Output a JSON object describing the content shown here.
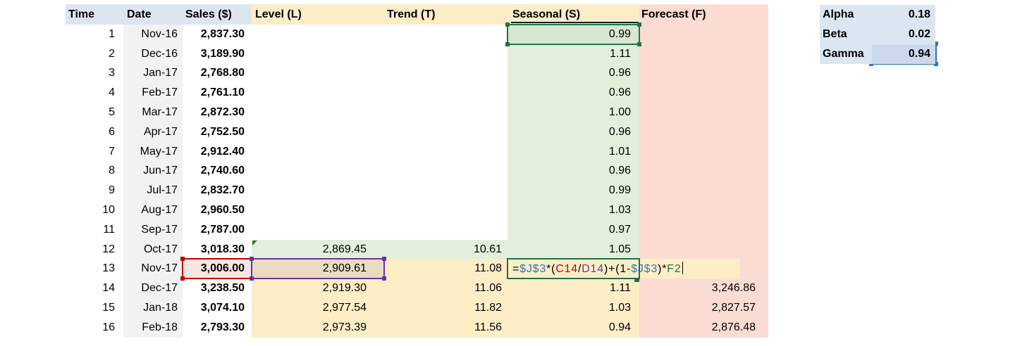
{
  "sheet": {
    "headers": {
      "time": "Time",
      "date": "Date",
      "sales": "Sales ($)",
      "level": "Level (L)",
      "trend": "Trend (T)",
      "seasonal": "Seasonal (S)",
      "forecast": "Forecast (F)"
    },
    "rows": [
      {
        "time": "1",
        "date": "Nov-16",
        "sales": "2,837.30",
        "level": "",
        "trend": "",
        "seasonal": "0.99",
        "forecast": ""
      },
      {
        "time": "2",
        "date": "Dec-16",
        "sales": "3,189.90",
        "level": "",
        "trend": "",
        "seasonal": "1.11",
        "forecast": ""
      },
      {
        "time": "3",
        "date": "Jan-17",
        "sales": "2,768.80",
        "level": "",
        "trend": "",
        "seasonal": "0.96",
        "forecast": ""
      },
      {
        "time": "4",
        "date": "Feb-17",
        "sales": "2,761.10",
        "level": "",
        "trend": "",
        "seasonal": "0.96",
        "forecast": ""
      },
      {
        "time": "5",
        "date": "Mar-17",
        "sales": "2,872.30",
        "level": "",
        "trend": "",
        "seasonal": "1.00",
        "forecast": ""
      },
      {
        "time": "6",
        "date": "Apr-17",
        "sales": "2,752.50",
        "level": "",
        "trend": "",
        "seasonal": "0.96",
        "forecast": ""
      },
      {
        "time": "7",
        "date": "May-17",
        "sales": "2,912.40",
        "level": "",
        "trend": "",
        "seasonal": "1.01",
        "forecast": ""
      },
      {
        "time": "8",
        "date": "Jun-17",
        "sales": "2,740.60",
        "level": "",
        "trend": "",
        "seasonal": "0.96",
        "forecast": ""
      },
      {
        "time": "9",
        "date": "Jul-17",
        "sales": "2,832.70",
        "level": "",
        "trend": "",
        "seasonal": "0.99",
        "forecast": ""
      },
      {
        "time": "10",
        "date": "Aug-17",
        "sales": "2,960.50",
        "level": "",
        "trend": "",
        "seasonal": "1.03",
        "forecast": ""
      },
      {
        "time": "11",
        "date": "Sep-17",
        "sales": "2,787.00",
        "level": "",
        "trend": "",
        "seasonal": "0.97",
        "forecast": ""
      },
      {
        "time": "12",
        "date": "Oct-17",
        "sales": "3,018.30",
        "level": "2,869.45",
        "trend": "10.61",
        "seasonal": "1.05",
        "forecast": ""
      },
      {
        "time": "13",
        "date": "Nov-17",
        "sales": "3,006.00",
        "level": "2,909.61",
        "trend": "11.08",
        "seasonal": "",
        "forecast": ""
      },
      {
        "time": "14",
        "date": "Dec-17",
        "sales": "3,238.50",
        "level": "2,919.30",
        "trend": "11.06",
        "seasonal": "1.11",
        "forecast": "3,246.86"
      },
      {
        "time": "15",
        "date": "Jan-18",
        "sales": "3,074.10",
        "level": "2,977.54",
        "trend": "11.82",
        "seasonal": "1.03",
        "forecast": "2,827.57"
      },
      {
        "time": "16",
        "date": "Feb-18",
        "sales": "2,793.30",
        "level": "2,973.39",
        "trend": "11.56",
        "seasonal": "0.94",
        "forecast": "2,876.48"
      }
    ],
    "formula": {
      "cell": "row 13 / Seasonal (S)",
      "tokens": [
        {
          "text": "=",
          "color": "black"
        },
        {
          "text": "$J$3",
          "color": "blue"
        },
        {
          "text": "*(",
          "color": "black"
        },
        {
          "text": "C14",
          "color": "red"
        },
        {
          "text": "/",
          "color": "black"
        },
        {
          "text": "D14",
          "color": "purple"
        },
        {
          "text": ")+(1-",
          "color": "black"
        },
        {
          "text": "$J$3",
          "color": "blue"
        },
        {
          "text": ")*",
          "color": "black"
        },
        {
          "text": "F2",
          "color": "green"
        }
      ]
    }
  },
  "parameters": {
    "rows": [
      {
        "label": "Alpha",
        "value": "0.18"
      },
      {
        "label": "Beta",
        "value": "0.02"
      },
      {
        "label": "Gamma",
        "value": "0.94"
      }
    ]
  },
  "selection": {
    "green_reference": {
      "row": 1,
      "column": "seasonal",
      "value": "0.99"
    },
    "red_reference": {
      "row": 13,
      "column": "sales",
      "value": "3,006.00"
    },
    "purple_reference": {
      "row": 13,
      "column": "level",
      "value": "2,909.61"
    },
    "blue_reference": {
      "parameter": "Gamma",
      "value": "0.94"
    },
    "editing_cell": {
      "row": 13,
      "column": "seasonal"
    },
    "error_flag": {
      "row": 12,
      "column": "level"
    }
  },
  "colors": {
    "header_blue": "#dce6f2",
    "header_cream": "#fdecc8",
    "forecast_pink": "#fbdcd2",
    "seasonal_green": "#e2efda",
    "computed_yellow": "#feeec6",
    "date_gray": "#f2f2f2",
    "ref_red": "#c00000",
    "ref_blue": "#2e75b6",
    "ref_purple": "#7030a0",
    "ref_green": "#217346"
  }
}
